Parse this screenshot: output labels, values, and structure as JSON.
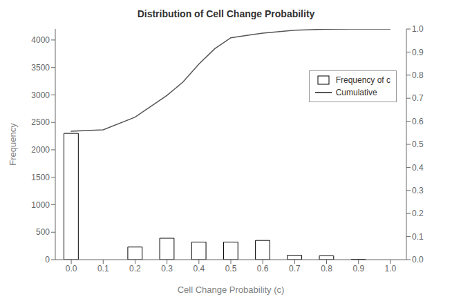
{
  "chart_data": {
    "type": "bar",
    "title": "Distribution of Cell Change Probability",
    "xlabel": "Cell Change Probability (c)",
    "ylabel": "Frequency",
    "x": [
      0.0,
      0.1,
      0.2,
      0.3,
      0.4,
      0.5,
      0.6,
      0.7,
      0.8,
      0.9,
      1.0
    ],
    "series": [
      {
        "name": "Frequency of c",
        "type": "bar",
        "color": "white",
        "values": [
          2300,
          0,
          230,
          390,
          320,
          320,
          350,
          80,
          70,
          5,
          0
        ]
      },
      {
        "name": "Cumulative",
        "type": "line",
        "color": "#555555",
        "axis": "y2",
        "x": [
          0.0,
          0.0,
          0.1,
          0.2,
          0.3,
          0.35,
          0.4,
          0.45,
          0.5,
          0.55,
          0.6,
          0.7,
          0.8,
          0.9,
          1.0
        ],
        "values": [
          0.555,
          0.557,
          0.563,
          0.618,
          0.712,
          0.77,
          0.848,
          0.915,
          0.962,
          0.972,
          0.982,
          0.995,
          0.999,
          1.0,
          1.0
        ]
      }
    ],
    "xlim": [
      -0.05,
      1.05
    ],
    "xticks": [
      {
        "value": 0.0,
        "label": "0.0"
      },
      0.1,
      0.2,
      0.3,
      0.4,
      0.5,
      0.6,
      0.7,
      0.8,
      0.9,
      {
        "value": 1.0,
        "label": "1.0"
      }
    ],
    "ylim": [
      0,
      4200
    ],
    "yticks": [
      0,
      500,
      1000,
      1500,
      2000,
      2500,
      3000,
      3500,
      4000
    ],
    "y2lim": [
      0,
      1.0
    ],
    "y2ticks": [
      {
        "value": 0.0,
        "label": "0.0"
      },
      0.1,
      0.2,
      0.3,
      0.4,
      0.5,
      0.6,
      0.7,
      0.8,
      0.9,
      {
        "value": 1.0,
        "label": "1.0"
      }
    ],
    "legend": "upper right"
  }
}
